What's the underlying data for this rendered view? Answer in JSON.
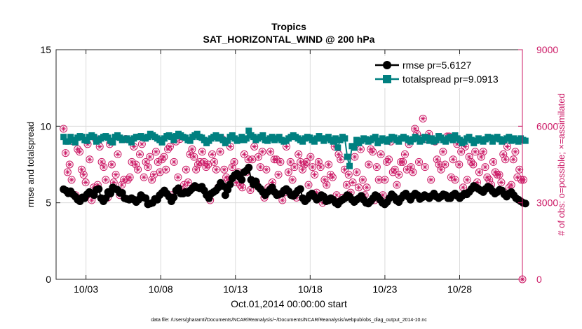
{
  "chart_data": {
    "type": "line",
    "title": "Tropics",
    "subtitle": "SAT_HORIZONTAL_WIND @ 200 hPa",
    "xlabel": "Oct.01,2014 00:00:00 start",
    "ylabel": "rmse and totalspread",
    "y2label": "# of obs: o=possible; ×=assimilated",
    "footnote": "data file: /Users/gharamti/Documents/NCAR/Reanalysis/~/Documents/NCAR/Reanalysis/webpub/obs_diag_output_2014-10.nc",
    "xticks": [
      "10/03",
      "10/08",
      "10/13",
      "10/18",
      "10/23",
      "10/28"
    ],
    "yticks": [
      "0",
      "5",
      "10",
      "15"
    ],
    "y2ticks": [
      "0",
      "3000",
      "6000",
      "9000"
    ],
    "ylim": [
      0,
      15
    ],
    "y2lim": [
      0,
      9000
    ],
    "xlim": [
      1,
      32.2
    ],
    "legend_position": "top-right",
    "series": [
      {
        "name": "rmse pr=5.6127",
        "color": "#000000",
        "marker": "circle",
        "values": [
          5.88,
          5.8,
          5.62,
          5.75,
          5.55,
          5.4,
          5.2,
          5.1,
          5.35,
          5.3,
          5.55,
          5.7,
          5.6,
          5.5,
          5.85,
          5.9,
          5.3,
          5.1,
          5.3,
          5.7,
          5.6,
          6.0,
          5.9,
          5.85,
          5.65,
          5.65,
          5.3,
          5.25,
          5.2,
          5.3,
          5.2,
          5.05,
          5.2,
          5.5,
          5.35,
          5.3,
          4.9,
          4.95,
          5.0,
          5.25,
          5.2,
          5.5,
          5.65,
          5.8,
          5.6,
          5.4,
          5.1,
          5.35,
          5.8,
          5.95,
          5.6,
          5.6,
          5.7,
          5.65,
          5.8,
          5.95,
          6.1,
          6.0,
          5.95,
          6.05,
          5.8,
          5.5,
          5.3,
          5.6,
          5.7,
          5.8,
          6.0,
          6.3,
          6.1,
          5.5,
          5.85,
          6.2,
          6.6,
          6.8,
          6.9,
          6.7,
          6.5,
          7.0,
          7.1,
          7.3,
          6.5,
          6.2,
          6.4,
          6.05,
          5.9,
          5.7,
          5.5,
          5.7,
          5.85,
          6.0,
          5.7,
          5.5,
          5.55,
          5.6,
          5.8,
          5.9,
          5.75,
          5.5,
          5.45,
          5.6,
          5.8,
          5.9,
          5.3,
          5.1,
          5.25,
          5.5,
          5.6,
          5.4,
          5.2,
          5.3,
          5.5,
          5.4,
          5.1,
          5.15,
          5.3,
          5.2,
          5.0,
          4.9,
          5.1,
          5.2,
          5.3,
          5.5,
          5.4,
          5.2,
          5.05,
          5.2,
          5.3,
          5.45,
          5.2,
          5.0,
          4.95,
          5.1,
          5.3,
          5.5,
          5.4,
          5.2,
          5.0,
          4.9,
          5.05,
          5.3,
          5.55,
          5.4,
          5.15,
          5.05,
          5.3,
          5.5,
          5.6,
          5.4,
          5.2,
          5.45,
          5.6,
          5.5,
          5.25,
          5.35,
          5.5,
          5.4,
          5.3,
          5.45,
          5.6,
          5.4,
          5.3,
          5.4,
          5.55,
          5.5,
          5.3,
          5.3,
          5.5,
          5.6,
          5.45,
          5.3,
          5.45,
          5.6,
          5.55,
          5.7,
          5.9,
          6.1,
          6.0,
          5.9,
          5.8,
          5.7,
          5.9,
          6.05,
          5.95,
          5.75,
          5.6,
          5.7,
          5.85,
          5.8,
          5.55,
          5.4,
          5.6,
          5.7,
          5.5,
          5.3,
          5.2,
          5.1,
          5.0,
          4.95
        ]
      },
      {
        "name": "totalspread pr=9.0913",
        "color": "#008080",
        "marker": "square",
        "values": [
          9.3,
          9.0,
          9.0,
          9.3,
          9.1,
          8.95,
          9.25,
          9.35,
          9.3,
          9.1,
          9.05,
          9.3,
          9.4,
          9.3,
          9.0,
          9.1,
          9.2,
          9.3,
          9.35,
          9.25,
          9.05,
          8.95,
          9.3,
          9.4,
          9.25,
          9.1,
          9.15,
          9.2,
          9.1,
          8.95,
          9.2,
          9.3,
          9.3,
          9.35,
          9.25,
          9.2,
          9.3,
          9.5,
          9.4,
          9.3,
          9.2,
          9.1,
          8.95,
          9.2,
          9.35,
          9.4,
          9.3,
          9.1,
          9.35,
          9.5,
          9.4,
          9.3,
          9.25,
          9.1,
          9.05,
          9.3,
          9.4,
          9.5,
          9.3,
          9.25,
          9.1,
          8.9,
          9.05,
          9.2,
          9.3,
          9.4,
          9.2,
          9.3,
          9.1,
          8.9,
          9.05,
          9.3,
          9.4,
          9.2,
          9.05,
          9.1,
          9.3,
          9.1,
          9.2,
          9.7,
          9.4,
          9.3,
          9.1,
          9.2,
          9.3,
          9.4,
          9.1,
          9.05,
          9.2,
          9.3,
          9.1,
          9.2,
          9.3,
          9.1,
          9.0,
          9.05,
          9.2,
          9.3,
          9.4,
          9.3,
          9.2,
          9.1,
          9.0,
          9.2,
          9.3,
          9.25,
          9.1,
          9.0,
          9.2,
          9.35,
          9.2,
          9.05,
          9.2,
          9.3,
          9.1,
          9.0,
          9.2,
          8.6,
          9.1,
          9.3,
          9.2,
          8.0,
          7.4,
          8.7,
          8.6,
          9.1,
          8.9,
          9.05,
          9.2,
          9.15,
          9.0,
          9.1,
          9.2,
          9.3,
          8.9,
          9.05,
          9.2,
          9.1,
          9.0,
          9.15,
          9.3,
          9.25,
          9.1,
          9.0,
          9.2,
          9.3,
          9.2,
          9.1,
          9.0,
          9.15,
          9.3,
          9.2,
          9.0,
          9.1,
          9.3,
          9.25,
          9.05,
          9.2,
          9.0,
          9.1,
          9.35,
          9.25,
          9.1,
          9.0,
          9.2,
          9.3,
          9.1,
          9.4,
          9.2,
          9.1,
          8.9,
          9.0,
          9.2,
          9.3,
          9.1,
          8.9,
          9.05,
          9.2,
          9.1,
          9.0,
          9.15,
          9.3,
          9.25,
          9.0,
          9.2,
          9.3,
          9.15,
          9.0,
          9.1,
          9.2,
          9.3,
          9.05,
          9.2,
          9.1,
          9.0,
          9.2,
          9.1,
          9.05
        ]
      },
      {
        "name": "# of obs possible",
        "axis": "right",
        "color": "#cc1a66",
        "marker": "circle-star",
        "values": [
          5900,
          4950,
          4200,
          4500,
          3900,
          5400,
          3300,
          5100,
          5000,
          4300,
          4100,
          3800,
          5300,
          4700,
          3100,
          3600,
          5500,
          3700,
          5200,
          4600,
          4400,
          3900,
          3200,
          5300,
          4500,
          3800,
          4100,
          4900,
          3300,
          3700,
          3900,
          5500,
          3900,
          4000,
          4600,
          5200,
          4500,
          4300,
          4900,
          5300,
          4000,
          4600,
          4400,
          4800,
          3900,
          4100,
          5000,
          4600,
          4200,
          4700,
          4800,
          4300,
          5100,
          5200,
          3300,
          4600,
          5400,
          4000,
          5500,
          3500,
          3700,
          4300,
          3800,
          4900,
          5100,
          4800,
          4300,
          4500,
          4600,
          5000,
          4600,
          4400,
          4500,
          3100,
          4900,
          4600,
          4300,
          3600,
          5000,
          5500,
          4300,
          4000,
          3900,
          5200,
          4400,
          4600,
          3800,
          4200,
          3700,
          3600,
          4900,
          4200,
          4700,
          3500,
          4700,
          5200,
          3800,
          4800,
          4400,
          5000,
          3200,
          4300,
          3600,
          5000,
          3800,
          4700,
          4700,
          4100,
          4600,
          3100,
          3400,
          5200,
          4200,
          4600,
          3900,
          4400,
          3200,
          4900,
          4600,
          4300,
          4500,
          4600,
          3700,
          4800,
          4400,
          4100,
          3400,
          4600,
          4400,
          3000,
          3900,
          3700,
          4500,
          4100,
          4000,
          5200,
          3300,
          4900,
          4700,
          3200,
          4300,
          3700,
          4100,
          3400,
          3800,
          4800,
          4200,
          3600,
          5100,
          3900,
          3300,
          3600,
          4500,
          5100,
          5000,
          3100,
          4400,
          3900,
          4900,
          3300,
          3900,
          4600,
          4700,
          5400,
          4200,
          4300,
          3700,
          4100,
          4600,
          4600,
          4900,
          4300,
          5300,
          4400,
          4200,
          5900,
          5700,
          4600,
          5500,
          6300,
          4400,
          5500,
          5700,
          3900,
          3300,
          5400,
          4700,
          4500,
          4300,
          5000,
          4500,
          5600,
          5600,
          4000,
          4700,
          3900,
          5300,
          4500,
          5000,
          3600,
          5200,
          3900,
          4800,
          4600,
          4500,
          5000,
          3800,
          4200,
          4800,
          5000,
          4400,
          4000,
          3900,
          3700,
          4600,
          4200,
          4100,
          4100,
          3800,
          4900,
          4700,
          5200,
          3600,
          3700,
          4700,
          5000,
          4000,
          4300,
          3900,
          3900,
          0
        ]
      }
    ]
  }
}
